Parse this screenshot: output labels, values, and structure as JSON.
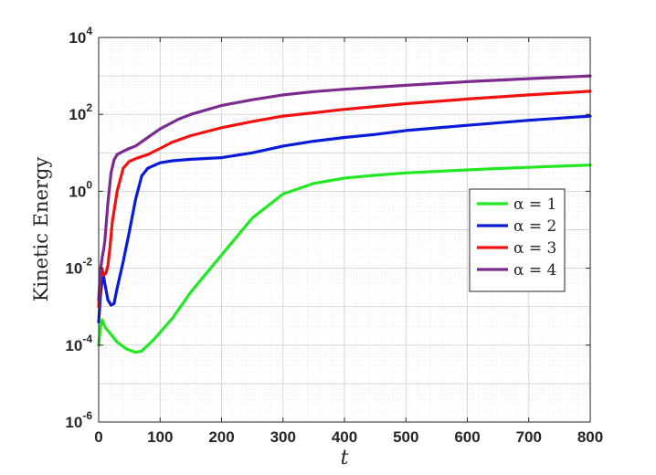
{
  "chart_data": {
    "type": "line",
    "title": "",
    "xlabel": "t",
    "ylabel": "Kinetic Energy",
    "xlim": [
      0,
      800
    ],
    "ylim": [
      1e-06,
      10000
    ],
    "yscale": "log",
    "grid": true,
    "minor_grid": true,
    "legend_position": "right",
    "x_ticks": [
      0,
      100,
      200,
      300,
      400,
      500,
      600,
      700,
      800
    ],
    "y_ticks": [
      {
        "value": 1e-06,
        "base": "10",
        "exp": "-6"
      },
      {
        "value": 0.0001,
        "base": "10",
        "exp": "-4"
      },
      {
        "value": 0.01,
        "base": "10",
        "exp": "-2"
      },
      {
        "value": 1,
        "base": "10",
        "exp": "0"
      },
      {
        "value": 100,
        "base": "10",
        "exp": "2"
      },
      {
        "value": 10000,
        "base": "10",
        "exp": "4"
      }
    ],
    "series": [
      {
        "name": "α = 1",
        "color": "#22e822",
        "x": [
          0,
          3,
          6,
          10,
          20,
          30,
          45,
          60,
          70,
          90,
          120,
          150,
          200,
          250,
          300,
          350,
          400,
          450,
          500,
          550,
          600,
          650,
          700,
          750,
          800
        ],
        "y": [
          0.0001,
          0.0003,
          0.00045,
          0.0003,
          0.00019,
          0.00012,
          8e-05,
          6.5e-05,
          7e-05,
          0.00014,
          0.0005,
          0.0024,
          0.022,
          0.2,
          0.85,
          1.6,
          2.2,
          2.6,
          3.0,
          3.3,
          3.6,
          3.9,
          4.2,
          4.5,
          4.8
        ]
      },
      {
        "name": "α = 2",
        "color": "#0a1bd8",
        "x": [
          0,
          3,
          7,
          10,
          15,
          20,
          25,
          30,
          40,
          50,
          60,
          70,
          80,
          100,
          120,
          150,
          200,
          250,
          300,
          350,
          400,
          450,
          500,
          600,
          700,
          800
        ],
        "y": [
          0.0004,
          0.002,
          0.008,
          0.004,
          0.0015,
          0.0011,
          0.0012,
          0.003,
          0.015,
          0.09,
          0.6,
          2.5,
          4.0,
          5.5,
          6.2,
          6.8,
          7.5,
          10,
          15,
          20,
          25,
          30,
          38,
          52,
          70,
          90
        ]
      },
      {
        "name": "α = 3",
        "color": "#f21010",
        "x": [
          0,
          3,
          5,
          8,
          12,
          15,
          18,
          22,
          30,
          40,
          50,
          60,
          70,
          80,
          100,
          120,
          150,
          200,
          250,
          300,
          350,
          400,
          500,
          600,
          700,
          800
        ],
        "y": [
          0.001,
          0.005,
          0.01,
          0.0065,
          0.0075,
          0.012,
          0.03,
          0.15,
          1.0,
          4.0,
          6.0,
          7.0,
          8.0,
          9.0,
          13,
          19,
          28,
          45,
          65,
          90,
          110,
          135,
          190,
          250,
          320,
          400
        ]
      },
      {
        "name": "α = 4",
        "color": "#7b2a8e",
        "x": [
          0,
          2,
          4,
          6,
          8,
          10,
          15,
          20,
          25,
          30,
          40,
          50,
          60,
          80,
          100,
          130,
          150,
          200,
          250,
          300,
          350,
          400,
          500,
          600,
          700,
          800
        ],
        "y": [
          0.0015,
          0.005,
          0.012,
          0.02,
          0.03,
          0.05,
          0.5,
          3.0,
          6.5,
          9.0,
          11,
          13,
          15,
          25,
          42,
          75,
          100,
          170,
          240,
          320,
          390,
          450,
          570,
          710,
          850,
          1000
        ]
      }
    ]
  }
}
